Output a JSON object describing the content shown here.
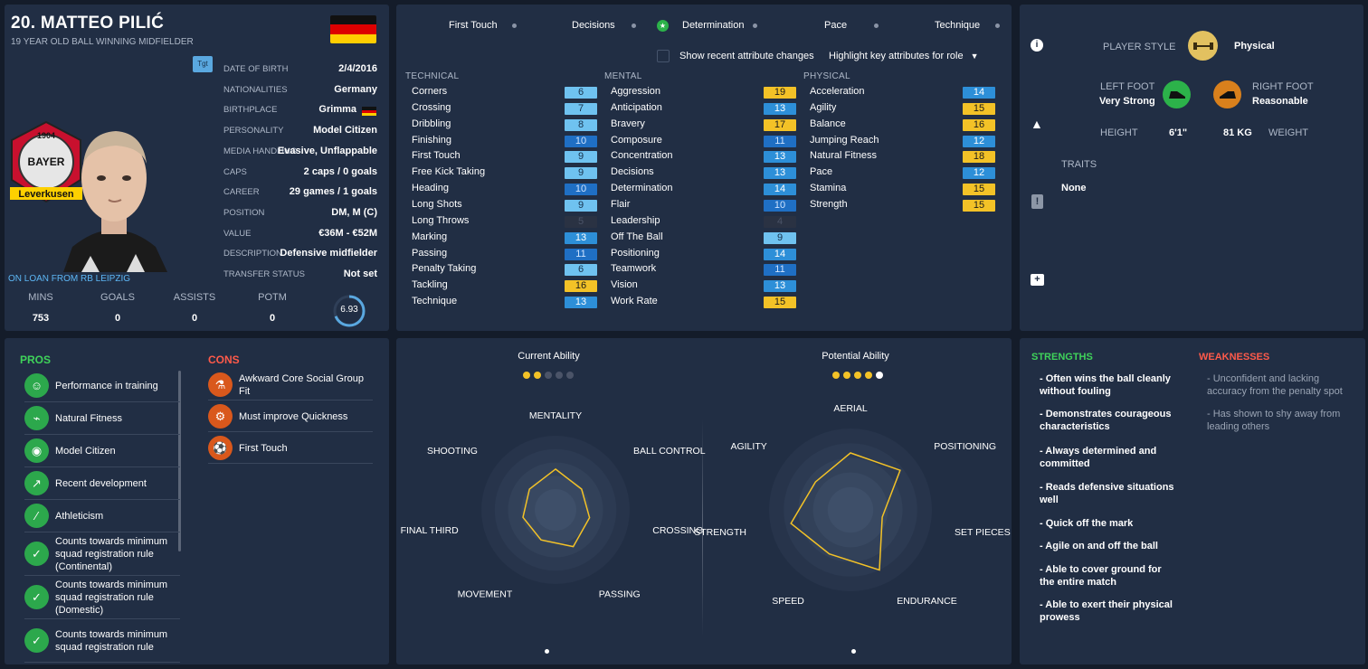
{
  "player": {
    "name": "20. MATTEO PILIĆ",
    "subtitle": "19 YEAR OLD  BALL WINNING MIDFIELDER",
    "loan_text": "ON LOAN FROM RB LEIPZIG",
    "tgt_label": "Tgt",
    "info": [
      {
        "label": "DATE OF BIRTH",
        "value": "2/4/2016"
      },
      {
        "label": "NATIONALITIES",
        "value": "Germany"
      },
      {
        "label": "BIRTHPLACE",
        "value": "Grimma"
      },
      {
        "label": "PERSONALITY",
        "value": "Model Citizen"
      },
      {
        "label": "MEDIA HANDLING",
        "value": "Evasive, Unflappable"
      },
      {
        "label": "CAPS",
        "value": "2 caps / 0 goals"
      },
      {
        "label": "CAREER",
        "value": "29 games /     1 goals"
      },
      {
        "label": "POSITION",
        "value": "DM, M (C)"
      },
      {
        "label": "VALUE",
        "value": "€36M - €52M"
      },
      {
        "label": "DESCRIPTION",
        "value": "Defensive midfielder"
      },
      {
        "label": "TRANSFER STATUS",
        "value": "Not set"
      }
    ],
    "stats": [
      {
        "label": "MINS",
        "value": "753"
      },
      {
        "label": "GOALS",
        "value": "0"
      },
      {
        "label": "ASSISTS",
        "value": "0"
      },
      {
        "label": "POTM",
        "value": "0"
      }
    ],
    "rating": "6.93",
    "rating_fraction": 0.69,
    "club_badge_text": [
      "1904",
      "BAYER",
      "Leverkusen"
    ]
  },
  "attributes": {
    "key_attrs": [
      "First Touch",
      "Decisions",
      "Determination",
      "Pace",
      "Technique"
    ],
    "show_changes_label": "Show recent attribute changes",
    "highlight_label": "Highlight key attributes for role",
    "technical": {
      "header": "TECHNICAL",
      "items": [
        {
          "name": "Corners",
          "value": "6",
          "style": "b-light"
        },
        {
          "name": "Crossing",
          "value": "7",
          "style": "b-light"
        },
        {
          "name": "Dribbling",
          "value": "8",
          "style": "b-light"
        },
        {
          "name": "Finishing",
          "value": "10",
          "style": "b-lo"
        },
        {
          "name": "First Touch",
          "value": "9",
          "style": "b-light"
        },
        {
          "name": "Free Kick Taking",
          "value": "9",
          "style": "b-light"
        },
        {
          "name": "Heading",
          "value": "10",
          "style": "b-lo"
        },
        {
          "name": "Long Shots",
          "value": "9",
          "style": "b-light"
        },
        {
          "name": "Long Throws",
          "value": "5",
          "style": "b-dark"
        },
        {
          "name": "Marking",
          "value": "13",
          "style": "b-mid"
        },
        {
          "name": "Passing",
          "value": "11",
          "style": "b-lo"
        },
        {
          "name": "Penalty Taking",
          "value": "6",
          "style": "b-light"
        },
        {
          "name": "Tackling",
          "value": "16",
          "style": "b-hi"
        },
        {
          "name": "Technique",
          "value": "13",
          "style": "b-mid"
        }
      ]
    },
    "mental": {
      "header": "MENTAL",
      "items": [
        {
          "name": "Aggression",
          "value": "19",
          "style": "b-hi"
        },
        {
          "name": "Anticipation",
          "value": "13",
          "style": "b-mid"
        },
        {
          "name": "Bravery",
          "value": "17",
          "style": "b-hi"
        },
        {
          "name": "Composure",
          "value": "11",
          "style": "b-lo"
        },
        {
          "name": "Concentration",
          "value": "13",
          "style": "b-mid"
        },
        {
          "name": "Decisions",
          "value": "13",
          "style": "b-mid"
        },
        {
          "name": "Determination",
          "value": "14",
          "style": "b-mid"
        },
        {
          "name": "Flair",
          "value": "10",
          "style": "b-lo"
        },
        {
          "name": "Leadership",
          "value": "4",
          "style": "b-dark"
        },
        {
          "name": "Off The Ball",
          "value": "9",
          "style": "b-light"
        },
        {
          "name": "Positioning",
          "value": "14",
          "style": "b-mid"
        },
        {
          "name": "Teamwork",
          "value": "11",
          "style": "b-lo"
        },
        {
          "name": "Vision",
          "value": "13",
          "style": "b-mid"
        },
        {
          "name": "Work Rate",
          "value": "15",
          "style": "b-hi"
        }
      ]
    },
    "physical": {
      "header": "PHYSICAL",
      "items": [
        {
          "name": "Acceleration",
          "value": "14",
          "style": "b-mid"
        },
        {
          "name": "Agility",
          "value": "15",
          "style": "b-hi"
        },
        {
          "name": "Balance",
          "value": "16",
          "style": "b-hi"
        },
        {
          "name": "Jumping Reach",
          "value": "12",
          "style": "b-mid"
        },
        {
          "name": "Natural Fitness",
          "value": "18",
          "style": "b-hi"
        },
        {
          "name": "Pace",
          "value": "12",
          "style": "b-mid"
        },
        {
          "name": "Stamina",
          "value": "15",
          "style": "b-hi"
        },
        {
          "name": "Strength",
          "value": "15",
          "style": "b-hi"
        }
      ]
    }
  },
  "profile": {
    "player_style_label": "PLAYER STYLE",
    "player_style_value": "Physical",
    "left_foot_label": "LEFT FOOT",
    "left_foot_value": "Very Strong",
    "right_foot_label": "RIGHT FOOT",
    "right_foot_value": "Reasonable",
    "height_label": "HEIGHT",
    "height_value": "6'1\"",
    "weight_value": "81 KG",
    "weight_label": "WEIGHT",
    "traits_label": "TRAITS",
    "traits_value": "None"
  },
  "pros": {
    "header": "PROS",
    "items": [
      "Performance in training",
      "Natural Fitness",
      "Model Citizen",
      "Recent development",
      "Athleticism",
      "Counts towards minimum squad registration rule (Continental)",
      "Counts towards minimum squad registration rule (Domestic)",
      "Counts towards minimum squad registration rule"
    ]
  },
  "cons": {
    "header": "CONS",
    "items": [
      "Awkward Core Social Group Fit",
      "Must improve Quickness",
      "First Touch"
    ]
  },
  "ability": {
    "current_label": "Current Ability",
    "potential_label": "Potential Ability",
    "current_stars": 2,
    "potential_stars": 4.5,
    "radar_left": {
      "axes": [
        "MENTALITY",
        "BALL CONTROL",
        "CROSSING",
        "PASSING",
        "MOVEMENT",
        "FINAL THIRD",
        "SHOOTING"
      ],
      "values": [
        0.55,
        0.45,
        0.47,
        0.55,
        0.45,
        0.45,
        0.45
      ]
    },
    "radar_right": {
      "axes": [
        "AERIAL",
        "POSITIONING",
        "SET PIECES",
        "ENDURANCE",
        "SPEED",
        "STRENGTH",
        "AGILITY"
      ],
      "values": [
        0.7,
        0.78,
        0.4,
        0.82,
        0.6,
        0.75,
        0.55
      ]
    }
  },
  "strengths": {
    "header": "STRENGTHS",
    "items": [
      "- Often wins the ball cleanly without fouling",
      "- Demonstrates courageous characteristics",
      "- Always determined and committed",
      "- Reads defensive situations well",
      "- Quick off the mark",
      "- Agile on and off the ball",
      "- Able to cover ground for the entire match",
      "- Able to exert their physical prowess"
    ]
  },
  "weaknesses": {
    "header": "WEAKNESSES",
    "items": [
      "- Unconfident and lacking accuracy from the penalty spot",
      "- Has shown to shy away from leading others"
    ]
  },
  "colors": {
    "accent_green": "#3fd35a",
    "accent_red": "#ff5a4a",
    "gold": "#f3c227",
    "blue": "#2d8fd8"
  }
}
